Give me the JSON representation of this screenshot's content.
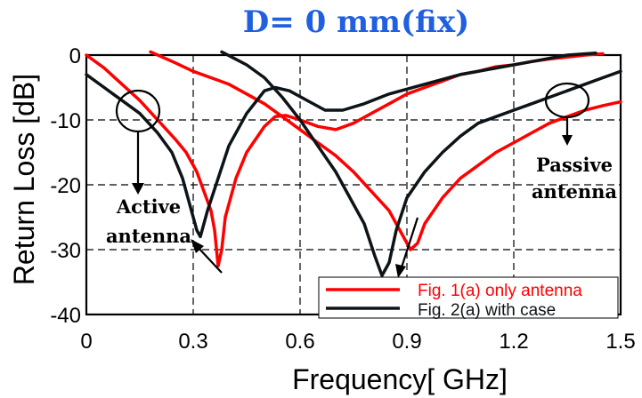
{
  "chart_data": {
    "type": "line",
    "title": "D= 0 mm(fix)",
    "xlabel": "Frequency[ GHz]",
    "ylabel": "Return Loss [dB]",
    "xlim": [
      0,
      1.5
    ],
    "ylim": [
      -40,
      0
    ],
    "xticks": [
      "0",
      "0.3",
      "0.6",
      "0.9",
      "1.2",
      "1.5"
    ],
    "yticks": [
      "0",
      "-10",
      "-20",
      "-30",
      "-40"
    ],
    "grid": true,
    "legend_position": "bottom-right",
    "series": [
      {
        "name": "Fig. 1(a) only antenna",
        "color": "#ff0000",
        "branches": [
          [
            [
              0,
              0
            ],
            [
              0.05,
              -2
            ],
            [
              0.1,
              -4.5
            ],
            [
              0.15,
              -7
            ],
            [
              0.2,
              -10
            ],
            [
              0.25,
              -13
            ],
            [
              0.28,
              -15
            ],
            [
              0.31,
              -18
            ],
            [
              0.33,
              -21
            ],
            [
              0.35,
              -24
            ],
            [
              0.36,
              -27
            ],
            [
              0.37,
              -32.5
            ],
            [
              0.38,
              -30
            ],
            [
              0.39,
              -25
            ],
            [
              0.42,
              -19
            ],
            [
              0.45,
              -15
            ],
            [
              0.5,
              -11
            ],
            [
              0.53,
              -9.5
            ],
            [
              0.56,
              -9.3
            ],
            [
              0.6,
              -10
            ],
            [
              0.65,
              -11
            ],
            [
              0.7,
              -11.5
            ],
            [
              0.75,
              -10.5
            ],
            [
              0.8,
              -9
            ],
            [
              0.85,
              -7.5
            ],
            [
              0.9,
              -6
            ],
            [
              0.95,
              -5
            ],
            [
              1.0,
              -4
            ],
            [
              1.05,
              -3
            ],
            [
              1.1,
              -2.5
            ],
            [
              1.15,
              -1.8
            ],
            [
              1.2,
              -1.5
            ],
            [
              1.25,
              -1
            ],
            [
              1.3,
              -0.6
            ],
            [
              1.35,
              -0.3
            ],
            [
              1.4,
              0
            ],
            [
              1.45,
              0.2
            ]
          ],
          [
            [
              0.18,
              0.5
            ],
            [
              0.25,
              -1.2
            ],
            [
              0.3,
              -2.5
            ],
            [
              0.35,
              -3.5
            ],
            [
              0.4,
              -4.5
            ],
            [
              0.45,
              -6
            ],
            [
              0.5,
              -7.5
            ],
            [
              0.55,
              -9.5
            ],
            [
              0.6,
              -11.5
            ],
            [
              0.65,
              -13.5
            ],
            [
              0.7,
              -15.5
            ],
            [
              0.75,
              -18
            ],
            [
              0.8,
              -21
            ],
            [
              0.85,
              -24
            ],
            [
              0.88,
              -27
            ],
            [
              0.91,
              -30
            ],
            [
              0.93,
              -29
            ],
            [
              0.95,
              -26
            ],
            [
              1.0,
              -22
            ],
            [
              1.05,
              -19
            ],
            [
              1.1,
              -17
            ],
            [
              1.15,
              -15
            ],
            [
              1.2,
              -13.5
            ],
            [
              1.25,
              -12
            ],
            [
              1.3,
              -10.5
            ],
            [
              1.35,
              -9.5
            ],
            [
              1.4,
              -8.5
            ],
            [
              1.45,
              -7.8
            ],
            [
              1.5,
              -7.2
            ]
          ]
        ]
      },
      {
        "name": "Fig. 2(a) with case",
        "color": "#0d1418",
        "branches": [
          [
            [
              0,
              -3
            ],
            [
              0.05,
              -5
            ],
            [
              0.1,
              -7
            ],
            [
              0.15,
              -9
            ],
            [
              0.2,
              -12
            ],
            [
              0.24,
              -15
            ],
            [
              0.27,
              -19
            ],
            [
              0.29,
              -23
            ],
            [
              0.31,
              -27
            ],
            [
              0.32,
              -28
            ],
            [
              0.34,
              -24
            ],
            [
              0.37,
              -19
            ],
            [
              0.4,
              -14
            ],
            [
              0.45,
              -9
            ],
            [
              0.5,
              -5.5
            ],
            [
              0.53,
              -5
            ],
            [
              0.57,
              -5.5
            ],
            [
              0.62,
              -7
            ],
            [
              0.67,
              -8.5
            ],
            [
              0.72,
              -8.5
            ],
            [
              0.78,
              -7.5
            ],
            [
              0.85,
              -6
            ],
            [
              0.95,
              -4.5
            ],
            [
              1.05,
              -3
            ],
            [
              1.15,
              -2
            ],
            [
              1.25,
              -1
            ],
            [
              1.35,
              0
            ],
            [
              1.43,
              0.3
            ]
          ],
          [
            [
              0.38,
              0.5
            ],
            [
              0.45,
              -1.5
            ],
            [
              0.5,
              -3.5
            ],
            [
              0.55,
              -6.5
            ],
            [
              0.6,
              -10
            ],
            [
              0.65,
              -14
            ],
            [
              0.7,
              -18
            ],
            [
              0.74,
              -22
            ],
            [
              0.78,
              -26
            ],
            [
              0.81,
              -31
            ],
            [
              0.83,
              -34
            ],
            [
              0.85,
              -32
            ],
            [
              0.87,
              -27
            ],
            [
              0.9,
              -22
            ],
            [
              0.95,
              -18
            ],
            [
              1.0,
              -15
            ],
            [
              1.05,
              -12.5
            ],
            [
              1.1,
              -10.5
            ],
            [
              1.15,
              -9.5
            ],
            [
              1.2,
              -8.5
            ],
            [
              1.25,
              -7.5
            ],
            [
              1.3,
              -6.5
            ],
            [
              1.35,
              -5.5
            ],
            [
              1.4,
              -4.5
            ],
            [
              1.45,
              -3.5
            ],
            [
              1.5,
              -2.5
            ]
          ]
        ]
      }
    ],
    "annotations": {
      "active": [
        "Active",
        "antenna"
      ],
      "passive": [
        "Passive",
        "antenna"
      ]
    }
  }
}
